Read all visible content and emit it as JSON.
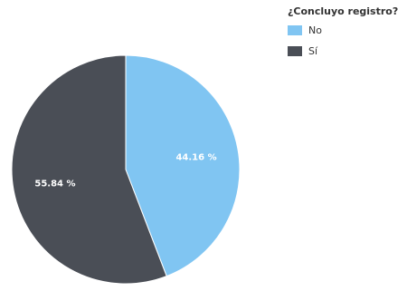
{
  "chart_data": {
    "type": "pie",
    "title": "",
    "legend": {
      "title": "¿Concluyo registro?",
      "placement": "top-right"
    },
    "slices": [
      {
        "name": "No",
        "value": 44.16,
        "label": "44.16 %",
        "color": "#80c5f2"
      },
      {
        "name": "Sí",
        "value": 55.84,
        "label": "55.84 %",
        "color": "#4a4e56"
      }
    ]
  }
}
